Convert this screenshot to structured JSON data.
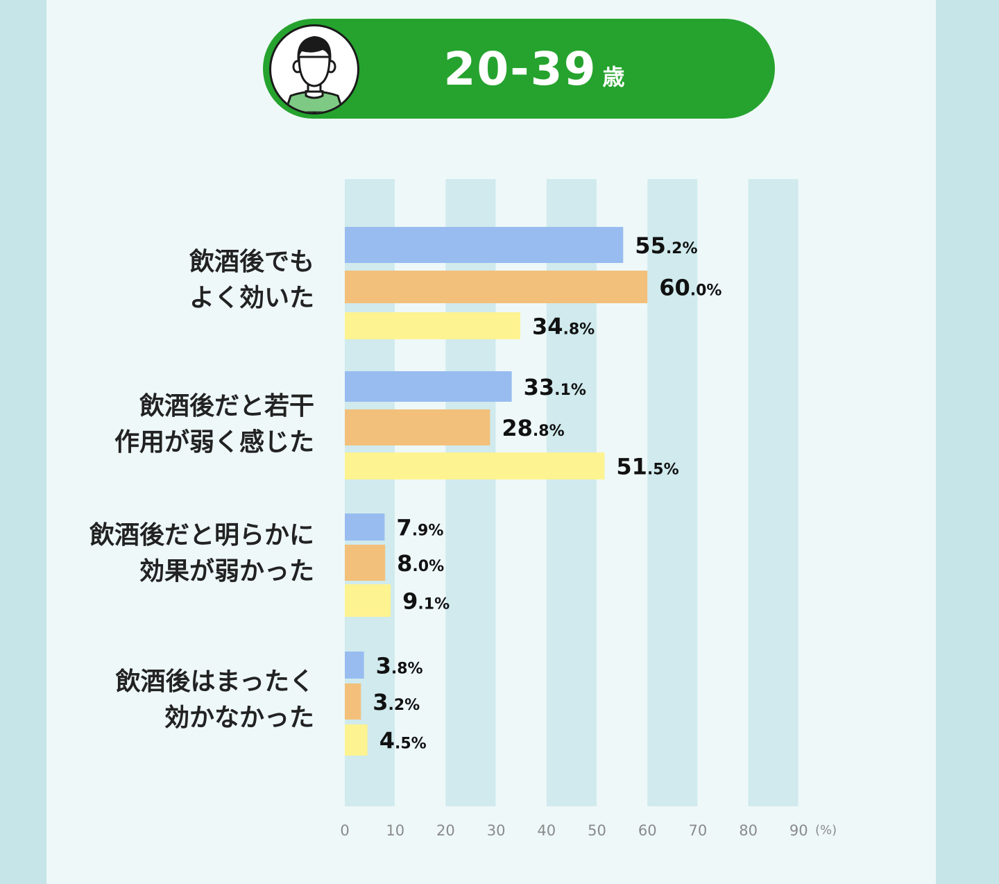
{
  "header": {
    "age_number": "20-39",
    "age_unit": "歳"
  },
  "colors": {
    "header_green": "#25a32e",
    "series_1": "#98bcf0",
    "series_2": "#f2c07b",
    "series_3": "#fdf391",
    "grid_band": "#d0eaed",
    "panel_bg": "#eef8f9",
    "outer_bg": "#c5e5e8"
  },
  "icons": {
    "avatar": "person-avatar-icon"
  },
  "chart_data": {
    "type": "bar",
    "orientation": "horizontal",
    "categories": [
      "飲酒後でも\nよく効いた",
      "飲酒後だと若干\n作用が弱く感じた",
      "飲酒後だと明らかに\n効果が弱かった",
      "飲酒後はまったく\n効かなかった"
    ],
    "series": [
      {
        "values": [
          55.2,
          33.1,
          7.9,
          3.8
        ]
      },
      {
        "values": [
          60.0,
          28.8,
          8.0,
          3.2
        ]
      },
      {
        "values": [
          34.8,
          51.5,
          9.1,
          4.5
        ]
      }
    ],
    "value_labels": [
      [
        [
          "55",
          ".2%"
        ],
        [
          "33",
          ".1%"
        ],
        [
          "7",
          ".9%"
        ],
        [
          "3",
          ".8%"
        ]
      ],
      [
        [
          "60",
          ".0%"
        ],
        [
          "28",
          ".8%"
        ],
        [
          "8",
          ".0%"
        ],
        [
          "3",
          ".2%"
        ]
      ],
      [
        [
          "34",
          ".8%"
        ],
        [
          "51",
          ".5%"
        ],
        [
          "9",
          ".1%"
        ],
        [
          "4",
          ".5%"
        ]
      ]
    ],
    "x_ticks": [
      "0",
      "10",
      "20",
      "30",
      "40",
      "50",
      "60",
      "70",
      "80",
      "90"
    ],
    "x_unit": "(%)",
    "xlim": [
      0,
      90
    ]
  }
}
